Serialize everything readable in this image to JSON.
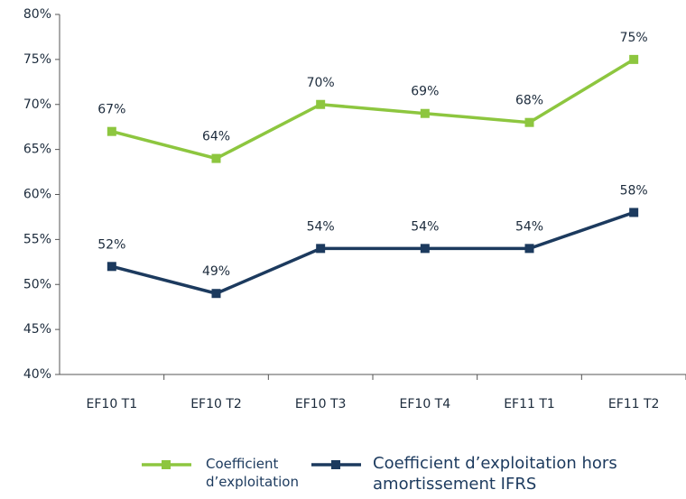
{
  "chart_data": {
    "type": "line",
    "categories": [
      "EF10 T1",
      "EF10 T2",
      "EF10 T3",
      "EF10 T4",
      "EF11 T1",
      "EF11 T2"
    ],
    "series": [
      {
        "name": "Coefficient d’exploitation",
        "color": "#8dc63f",
        "values": [
          67,
          64,
          70,
          69,
          68,
          75
        ],
        "value_labels": [
          "67%",
          "64%",
          "70%",
          "69%",
          "68%",
          "75%"
        ]
      },
      {
        "name": "Coefficient d’exploitation hors amortissement IFRS",
        "color": "#1c3a5e",
        "values": [
          52,
          49,
          54,
          54,
          54,
          58
        ],
        "value_labels": [
          "52%",
          "49%",
          "54%",
          "54%",
          "54%",
          "58%"
        ]
      }
    ],
    "ylim": [
      40,
      80
    ],
    "yticks": [
      {
        "value": 40,
        "label": "40%"
      },
      {
        "value": 45,
        "label": "45%"
      },
      {
        "value": 50,
        "label": "50%"
      },
      {
        "value": 55,
        "label": "55%"
      },
      {
        "value": 60,
        "label": "60%"
      },
      {
        "value": 65,
        "label": "65%"
      },
      {
        "value": 70,
        "label": "70%"
      },
      {
        "value": 75,
        "label": "75%"
      },
      {
        "value": 80,
        "label": "80%"
      }
    ],
    "grid": false
  }
}
